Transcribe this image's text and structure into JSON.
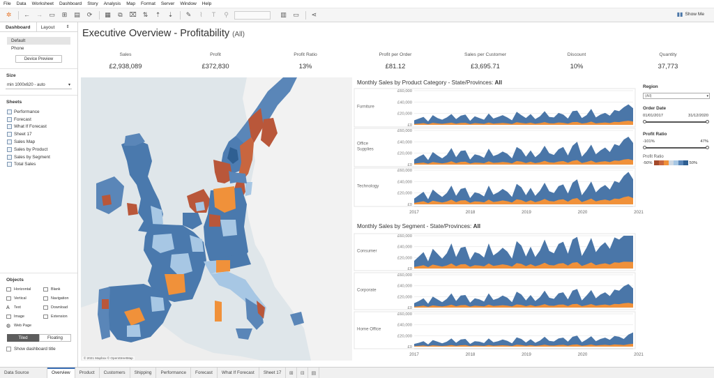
{
  "menu": [
    "File",
    "Data",
    "Worksheet",
    "Dashboard",
    "Story",
    "Analysis",
    "Map",
    "Format",
    "Server",
    "Window",
    "Help"
  ],
  "toolbar": {
    "show_me": "Show Me"
  },
  "left": {
    "tab_dashboard": "Dashboard",
    "tab_layout": "Layout",
    "devices": [
      "Default",
      "Phone"
    ],
    "device_preview": "Device Preview",
    "size_heading": "Size",
    "size_value": "min 1000x620 - auto",
    "sheets_heading": "Sheets",
    "sheets": [
      "Performance",
      "Forecast",
      "What If Forecast",
      "Sheet 17",
      "Sales Map",
      "Sales by Product",
      "Sales by Segment",
      "Total Sales"
    ],
    "objects_heading": "Objects",
    "objects": [
      "Horizontal",
      "Blank",
      "Vertical",
      "Navigation",
      "Text",
      "Download",
      "Image",
      "Extension",
      "Web Page"
    ],
    "tiled": "Tiled",
    "floating": "Floating",
    "show_title": "Show dashboard title"
  },
  "dashboard": {
    "title": "Executive Overview - Profitability",
    "title_filter": "(All)",
    "kpis": [
      {
        "label": "Sales",
        "value": "£2,938,089"
      },
      {
        "label": "Profit",
        "value": "£372,830"
      },
      {
        "label": "Profit Ratio",
        "value": "13%"
      },
      {
        "label": "Profit per Order",
        "value": "£81.12"
      },
      {
        "label": "Sales per Customer",
        "value": "£3,695.71"
      },
      {
        "label": "Discount",
        "value": "10%"
      },
      {
        "label": "Quantity",
        "value": "37,773"
      }
    ],
    "map_attribution": "© 2021 Mapbox © OpenStreetMap"
  },
  "filters": {
    "region_title": "Region",
    "region_value": "(All)",
    "order_date_title": "Order Date",
    "date_min": "01/01/2017",
    "date_max": "31/12/2020",
    "profit_ratio_title": "Profit Ratio",
    "pr_min": "-101%",
    "pr_max": "47%",
    "legend_title": "Profit Ratio",
    "legend_min": "-50%",
    "legend_max": "50%"
  },
  "tabs": [
    "Data Source",
    "Overview",
    "Product",
    "Customers",
    "Shipping",
    "Performance",
    "Forecast",
    "What If Forecast",
    "Sheet 17"
  ],
  "colors": {
    "sales": "#4a76a8",
    "profit": "#f0913a",
    "map_loss": "#b9573a",
    "map_low": "#a7c7e4",
    "map_high": "#4a79ad"
  },
  "chart_data": [
    {
      "type": "area",
      "title_prefix": "Monthly Sales by Product Category - State/Provinces: ",
      "title_value": "All",
      "x": [
        "2017",
        "2018",
        "2019",
        "2020",
        "2021"
      ],
      "yticks": [
        "£60,000",
        "£40,000",
        "£20,000",
        "£0"
      ],
      "ylim": [
        0,
        60000
      ],
      "panels": [
        {
          "name": "Furniture",
          "sales": [
            8000,
            11000,
            14000,
            6000,
            17000,
            12000,
            9000,
            13000,
            19000,
            10000,
            16000,
            18000,
            7000,
            15000,
            12000,
            9000,
            20000,
            11000,
            14000,
            17000,
            13000,
            8000,
            23000,
            17000,
            12000,
            19000,
            10000,
            15000,
            24000,
            14000,
            13000,
            21000,
            18000,
            11000,
            24000,
            25000,
            12000,
            17000,
            28000,
            13000,
            18000,
            21000,
            16000,
            26000,
            24000,
            31000,
            36000,
            29000
          ],
          "profit": [
            1500,
            2200,
            3000,
            1200,
            3500,
            2500,
            1800,
            2700,
            3800,
            2000,
            3300,
            3600,
            1400,
            3000,
            2400,
            1800,
            4000,
            2200,
            2800,
            3400,
            2600,
            1600,
            4600,
            3400,
            2400,
            3800,
            2000,
            3000,
            4800,
            2800,
            2600,
            4200,
            3600,
            2200,
            4800,
            5000,
            2400,
            3400,
            5600,
            2600,
            3600,
            4200,
            3200,
            5200,
            4800,
            6200,
            7200,
            5800
          ]
        },
        {
          "name": "Office Supplies",
          "sales": [
            9000,
            14000,
            18000,
            8000,
            22000,
            16000,
            11000,
            17000,
            29000,
            13000,
            24000,
            25000,
            9000,
            18000,
            16000,
            12000,
            28000,
            15000,
            18000,
            23000,
            19000,
            11000,
            31000,
            26000,
            14000,
            25000,
            13000,
            20000,
            33000,
            20000,
            17000,
            27000,
            31000,
            16000,
            33000,
            40000,
            14000,
            23000,
            35000,
            18000,
            25000,
            30000,
            22000,
            36000,
            33000,
            44000,
            49000,
            38000
          ],
          "profit": [
            1800,
            2800,
            3600,
            1600,
            4400,
            3200,
            2200,
            3400,
            5800,
            2600,
            4800,
            5000,
            1800,
            3600,
            3200,
            2400,
            5600,
            3000,
            3600,
            4600,
            3800,
            2200,
            6200,
            5200,
            2800,
            5000,
            2600,
            4000,
            6600,
            4000,
            3400,
            5400,
            6200,
            3200,
            6600,
            8000,
            2800,
            4600,
            7000,
            3600,
            5000,
            6000,
            4400,
            7200,
            6600,
            8800,
            9800,
            7600
          ]
        },
        {
          "name": "Technology",
          "sales": [
            10000,
            16000,
            22000,
            9000,
            26000,
            19000,
            13000,
            20000,
            33000,
            15000,
            27000,
            29000,
            11000,
            21000,
            19000,
            14000,
            33000,
            17000,
            21000,
            27000,
            22000,
            13000,
            36000,
            30000,
            16000,
            29000,
            15000,
            24000,
            38000,
            23000,
            20000,
            32000,
            35000,
            19000,
            38000,
            44000,
            16000,
            27000,
            40000,
            21000,
            29000,
            34000,
            26000,
            41000,
            38000,
            50000,
            57000,
            44000
          ],
          "profit": [
            2500,
            4000,
            5500,
            2200,
            6500,
            4800,
            3200,
            5000,
            8200,
            3800,
            6800,
            7200,
            2800,
            5200,
            4800,
            3500,
            8200,
            4200,
            5200,
            6800,
            5500,
            3200,
            9000,
            7500,
            4000,
            7200,
            3800,
            6000,
            9500,
            5800,
            5000,
            8000,
            8800,
            4800,
            9500,
            11000,
            4000,
            6800,
            10000,
            5200,
            7200,
            8500,
            6500,
            10200,
            9500,
            12500,
            14200,
            11000
          ]
        }
      ]
    },
    {
      "type": "area",
      "title_prefix": "Monthly Sales by Segment - State/Provinces: ",
      "title_value": "All",
      "x": [
        "2017",
        "2018",
        "2019",
        "2020",
        "2021"
      ],
      "yticks": [
        "£60,000",
        "£40,000",
        "£20,000",
        "£0"
      ],
      "ylim": [
        0,
        60000
      ],
      "panels": [
        {
          "name": "Consumer",
          "sales": [
            14000,
            22000,
            30000,
            13000,
            36000,
            27000,
            18000,
            28000,
            46000,
            21000,
            38000,
            40000,
            16000,
            30000,
            27000,
            20000,
            46000,
            24000,
            30000,
            38000,
            31000,
            18000,
            50000,
            42000,
            22000,
            40000,
            21000,
            33000,
            53000,
            32000,
            28000,
            45000,
            49000,
            27000,
            53000,
            58000,
            23000,
            38000,
            56000,
            30000,
            41000,
            48000,
            36000,
            57000,
            53000,
            62000,
            61000,
            60000
          ],
          "profit": [
            2800,
            4400,
            6000,
            2600,
            7200,
            5400,
            3600,
            5600,
            9200,
            4200,
            7600,
            8000,
            3200,
            6000,
            5400,
            4000,
            9200,
            4800,
            6000,
            7600,
            6200,
            3600,
            10000,
            8400,
            4400,
            8000,
            4200,
            6600,
            10600,
            6400,
            5600,
            9000,
            9800,
            5400,
            10600,
            11600,
            4600,
            7600,
            11200,
            6000,
            8200,
            9600,
            7200,
            11400,
            10600,
            12400,
            12200,
            12000
          ]
        },
        {
          "name": "Corporate",
          "sales": [
            8000,
            12000,
            17000,
            7000,
            20000,
            15000,
            10000,
            16000,
            26000,
            12000,
            22000,
            23000,
            9000,
            17000,
            15000,
            11000,
            26000,
            14000,
            17000,
            22000,
            18000,
            10000,
            29000,
            24000,
            13000,
            23000,
            12000,
            19000,
            31000,
            18000,
            16000,
            26000,
            28000,
            15000,
            31000,
            34000,
            13000,
            22000,
            32000,
            17000,
            24000,
            28000,
            21000,
            33000,
            31000,
            39000,
            43000,
            35000
          ],
          "profit": [
            1600,
            2400,
            3400,
            1400,
            4000,
            3000,
            2000,
            3200,
            5200,
            2400,
            4400,
            4600,
            1800,
            3400,
            3000,
            2200,
            5200,
            2800,
            3400,
            4400,
            3600,
            2000,
            5800,
            4800,
            2600,
            4600,
            2400,
            3800,
            6200,
            3600,
            3200,
            5200,
            5600,
            3000,
            6200,
            6800,
            2600,
            4400,
            6400,
            3400,
            4800,
            5600,
            4200,
            6600,
            6200,
            7800,
            8600,
            7000
          ]
        },
        {
          "name": "Home Office",
          "sales": [
            5000,
            7000,
            10000,
            4000,
            12000,
            9000,
            6000,
            9000,
            15000,
            7000,
            13000,
            14000,
            5000,
            10000,
            9000,
            6500,
            15000,
            8000,
            10000,
            13000,
            10500,
            6000,
            17000,
            14000,
            7500,
            13500,
            7000,
            11000,
            18000,
            10500,
            9500,
            15000,
            16500,
            9000,
            18000,
            20000,
            8000,
            13000,
            19000,
            10000,
            14000,
            16500,
            12500,
            19500,
            18000,
            14000,
            22000,
            26000
          ],
          "profit": [
            1000,
            1400,
            2000,
            800,
            2400,
            1800,
            1200,
            1800,
            3000,
            1400,
            2600,
            2800,
            1000,
            2000,
            1800,
            1300,
            3000,
            1600,
            2000,
            2600,
            2100,
            1200,
            3400,
            2800,
            1500,
            2700,
            1400,
            2200,
            3600,
            2100,
            1900,
            3000,
            3300,
            1800,
            3600,
            4000,
            1600,
            2600,
            3800,
            2000,
            2800,
            3300,
            2500,
            3900,
            3600,
            2800,
            4400,
            5200
          ]
        }
      ]
    }
  ]
}
